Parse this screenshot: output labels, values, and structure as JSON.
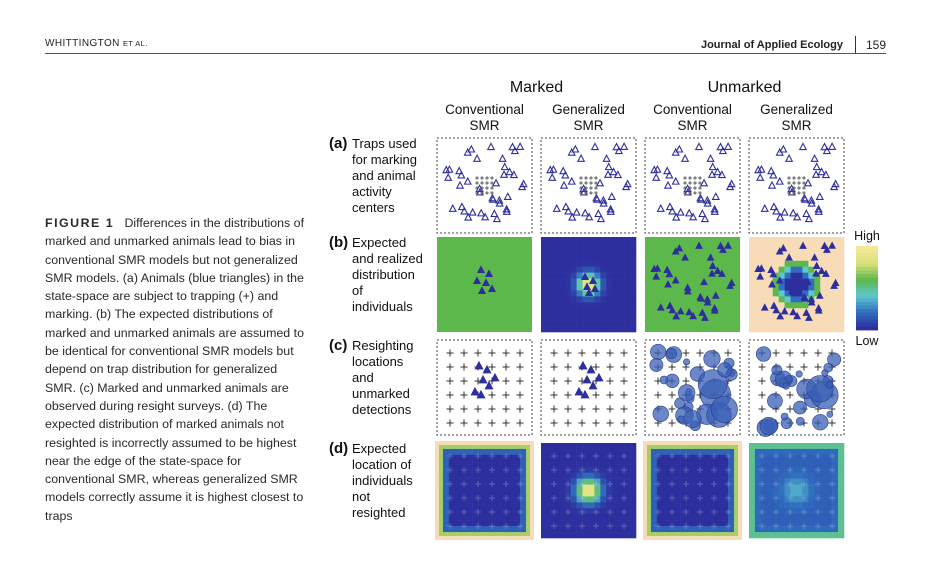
{
  "header": {
    "author_main": "WHITTINGTON",
    "author_suffix": "ET AL.",
    "journal": "Journal of Applied Ecology",
    "page": "159"
  },
  "caption": {
    "label": "FIGURE 1",
    "text": "Differences in the distributions of marked and unmarked animals lead to bias in conventional SMR models but not generalized SMR models. (a) Animals (blue triangles) in the state-space are subject to trapping (+) and marking. (b) The expected distributions of marked and unmarked animals are assumed to be identical for conventional SMR models but depend on trap distribution for generalized SMR. (c) Marked and unmarked animals are observed during resight surveys. (d) The expected distribution of marked animals not resighted is incorrectly assumed to be highest near the edge of the state-space for conventional SMR, whereas generalized SMR models correctly assume it is highest closest to traps"
  },
  "figure": {
    "group_headers": [
      "Marked",
      "Unmarked"
    ],
    "column_headers": [
      [
        "Conventional",
        "SMR"
      ],
      [
        "Generalized",
        "SMR"
      ],
      [
        "Conventional",
        "SMR"
      ],
      [
        "Generalized",
        "SMR"
      ]
    ],
    "rows": [
      {
        "tag": "(a)",
        "lines": [
          "Traps used",
          "for marking",
          "and animal",
          "activity",
          "centers"
        ]
      },
      {
        "tag": "(b)",
        "lines": [
          "Expected",
          "and realized",
          "distribution",
          "of",
          "individuals"
        ]
      },
      {
        "tag": "(c)",
        "lines": [
          "Resighting",
          "locations",
          "and",
          "unmarked",
          "detections"
        ]
      },
      {
        "tag": "(d)",
        "lines": [
          "Expected",
          "location of",
          "individuals",
          "not",
          "resighted"
        ]
      }
    ],
    "legend": {
      "high": "High",
      "low": "Low"
    },
    "colors": {
      "blue": "#2d2f9e",
      "green": "#5cb84a",
      "peach": "#f8dcb8",
      "yellow": "#f6e89a",
      "cyan": "#5ec7cf",
      "bubble": "#3a5fb5"
    }
  }
}
